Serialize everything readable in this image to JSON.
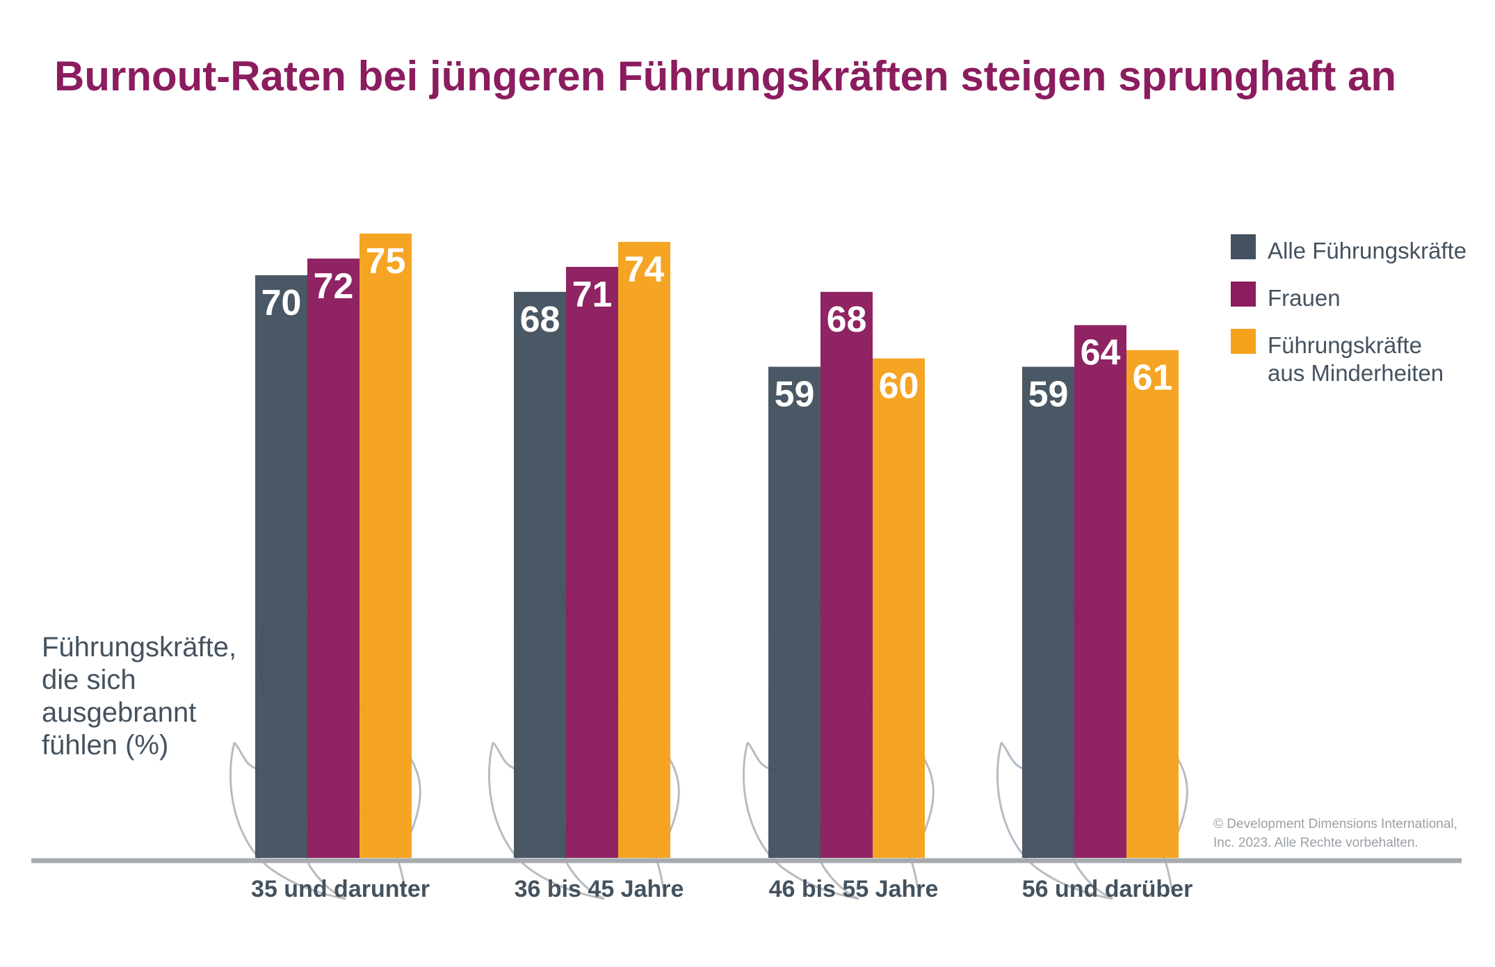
{
  "chart_data": {
    "type": "bar",
    "title": "Burnout-Raten bei jüngeren Führungskräften steigen sprunghaft an",
    "ylabel_lines": [
      "Führungskräfte,",
      "die sich",
      "ausgebrannt",
      "fühlen (%)"
    ],
    "categories": [
      "35 und darunter",
      "36 bis 45 Jahre",
      "46 bis 55 Jahre",
      "56 und darüber"
    ],
    "series": [
      {
        "name": "Alle Führungskräfte",
        "color": "#44525f",
        "values": [
          70,
          68,
          59,
          59
        ]
      },
      {
        "name": "Frauen",
        "color": "#8b1c5e",
        "values": [
          72,
          71,
          68,
          64
        ]
      },
      {
        "name": "Führungskräfte aus Minderheiten",
        "legend_lines": [
          "Führungskräfte",
          "aus Minderheiten"
        ],
        "color": "#f5a11c",
        "values": [
          75,
          74,
          60,
          61
        ]
      }
    ],
    "ylim": [
      0,
      75
    ],
    "legend_position": "top-right",
    "grid": false,
    "copyright_lines": [
      "© Development Dimensions International,",
      "Inc. 2023. Alle Rechte vorbehalten."
    ]
  }
}
